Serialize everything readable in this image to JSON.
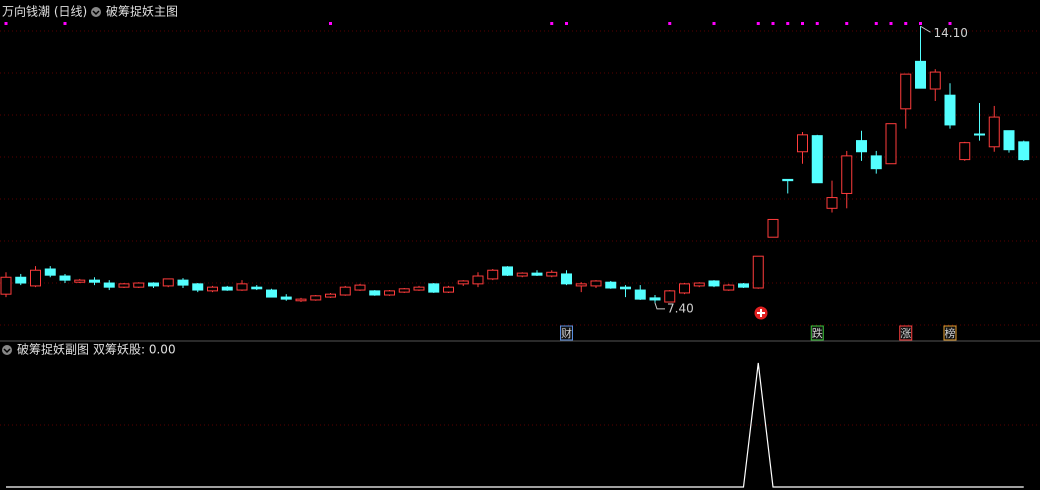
{
  "chart_data": [
    {
      "type": "candlestick",
      "title": "万向钱潮 (日线)",
      "subtitle": "破筹捉妖主图",
      "open": [
        7.61,
        8.02,
        7.81,
        8.22,
        8.05,
        7.9,
        7.95,
        7.88,
        7.78,
        7.78,
        7.88,
        7.81,
        7.95,
        7.86,
        7.69,
        7.78,
        7.71,
        7.78,
        7.71,
        7.54,
        7.45,
        7.47,
        7.54,
        7.59,
        7.71,
        7.69,
        7.59,
        7.66,
        7.71,
        7.86,
        7.66,
        7.86,
        7.86,
        7.98,
        8.27,
        8.05,
        8.12,
        8.05,
        8.1,
        7.81,
        7.81,
        7.9,
        7.78,
        7.71,
        7.52,
        7.42,
        7.64,
        7.81,
        7.93,
        7.71,
        7.86,
        7.76,
        8.99,
        10.39,
        11.06,
        11.45,
        9.69,
        10.05,
        11.33,
        10.96,
        10.77,
        12.1,
        13.25,
        12.58,
        12.43,
        10.87,
        11.49,
        11.18,
        11.57,
        11.3
      ],
      "high": [
        8.14,
        8.1,
        8.29,
        8.29,
        8.1,
        7.98,
        8.02,
        7.95,
        7.88,
        7.9,
        7.9,
        7.98,
        8.0,
        7.88,
        7.81,
        7.81,
        7.95,
        7.83,
        7.74,
        7.61,
        7.52,
        7.59,
        7.64,
        7.81,
        7.86,
        7.71,
        7.71,
        7.76,
        7.81,
        7.88,
        7.81,
        7.95,
        8.14,
        8.22,
        8.29,
        8.14,
        8.19,
        8.19,
        8.19,
        7.9,
        7.95,
        7.93,
        7.83,
        7.83,
        7.59,
        7.71,
        7.88,
        7.9,
        7.95,
        7.86,
        7.88,
        8.53,
        9.42,
        10.39,
        11.54,
        11.47,
        10.36,
        11.08,
        11.57,
        11.08,
        11.74,
        12.94,
        14.1,
        13.06,
        12.72,
        11.3,
        12.24,
        12.17,
        11.57,
        11.33
      ],
      "low": [
        7.54,
        7.83,
        7.78,
        8.02,
        7.88,
        7.88,
        7.83,
        7.71,
        7.76,
        7.76,
        7.76,
        7.78,
        7.76,
        7.66,
        7.66,
        7.69,
        7.69,
        7.71,
        7.54,
        7.45,
        7.42,
        7.45,
        7.52,
        7.57,
        7.69,
        7.57,
        7.57,
        7.64,
        7.69,
        7.64,
        7.64,
        7.81,
        7.78,
        7.95,
        8.05,
        8.02,
        8.05,
        8.02,
        7.83,
        7.66,
        7.76,
        7.74,
        7.54,
        7.47,
        7.4,
        7.42,
        7.61,
        7.78,
        7.78,
        7.69,
        7.76,
        7.74,
        8.99,
        10.05,
        10.77,
        10.31,
        9.59,
        9.69,
        10.84,
        10.53,
        10.77,
        11.62,
        12.6,
        12.29,
        11.62,
        10.84,
        11.33,
        11.06,
        11.04,
        10.84
      ],
      "close": [
        8.02,
        7.88,
        8.19,
        8.07,
        7.95,
        7.95,
        7.9,
        7.78,
        7.86,
        7.88,
        7.81,
        7.98,
        7.83,
        7.71,
        7.78,
        7.71,
        7.86,
        7.74,
        7.54,
        7.49,
        7.49,
        7.57,
        7.61,
        7.78,
        7.83,
        7.59,
        7.69,
        7.74,
        7.78,
        7.66,
        7.78,
        7.93,
        8.05,
        8.19,
        8.07,
        8.12,
        8.07,
        8.14,
        7.86,
        7.86,
        7.93,
        7.76,
        7.74,
        7.49,
        7.47,
        7.69,
        7.86,
        7.88,
        7.81,
        7.83,
        7.78,
        8.53,
        9.42,
        10.36,
        11.47,
        10.31,
        9.95,
        10.96,
        11.06,
        10.65,
        11.74,
        12.94,
        12.6,
        12.99,
        11.71,
        11.28,
        11.47,
        11.9,
        11.11,
        10.87
      ],
      "up_color": "#ff3c3c",
      "down_color": "#54ffff",
      "ylim": [
        6.5,
        14.3
      ],
      "high_mark": {
        "value": 14.1,
        "label": "14.10"
      },
      "low_mark": {
        "value": 7.4,
        "label": "7.40"
      },
      "signal_color": "#ff00ff",
      "signals": [
        1,
        0,
        0,
        0,
        1,
        0,
        0,
        0,
        0,
        0,
        0,
        0,
        0,
        0,
        0,
        0,
        0,
        0,
        0,
        0,
        0,
        0,
        1,
        0,
        0,
        0,
        0,
        0,
        0,
        0,
        0,
        0,
        0,
        0,
        0,
        0,
        0,
        1,
        1,
        0,
        0,
        0,
        0,
        0,
        0,
        1,
        0,
        0,
        1,
        0,
        0,
        1,
        1,
        1,
        1,
        1,
        0,
        1,
        0,
        1,
        1,
        1,
        1,
        0,
        1,
        0,
        0,
        0,
        0,
        0
      ],
      "events": [
        {
          "index": 38,
          "label": "财",
          "color": "#5b8fe0"
        },
        {
          "index": 55,
          "label": "跌",
          "color": "#3cc83c"
        },
        {
          "index": 61,
          "label": "涨",
          "color": "#ff4040"
        },
        {
          "index": 64,
          "label": "榜",
          "color": "#e8a030"
        }
      ]
    },
    {
      "type": "line",
      "title": "破筹捉妖副图",
      "subtitle": "双筹妖股: 0.00",
      "color": "#ffffff",
      "values": [
        0,
        0,
        0,
        0,
        0,
        0,
        0,
        0,
        0,
        0,
        0,
        0,
        0,
        0,
        0,
        0,
        0,
        0,
        0,
        0,
        0,
        0,
        0,
        0,
        0,
        0,
        0,
        0,
        0,
        0,
        0,
        0,
        0,
        0,
        0,
        0,
        0,
        0,
        0,
        0,
        0,
        0,
        0,
        0,
        0,
        0,
        0,
        0,
        0,
        0,
        0,
        1,
        0,
        0,
        0,
        0,
        0,
        0,
        0,
        0,
        0,
        0,
        0,
        0,
        0,
        0,
        0,
        0,
        0,
        0
      ],
      "ylim": [
        0,
        1
      ]
    }
  ]
}
